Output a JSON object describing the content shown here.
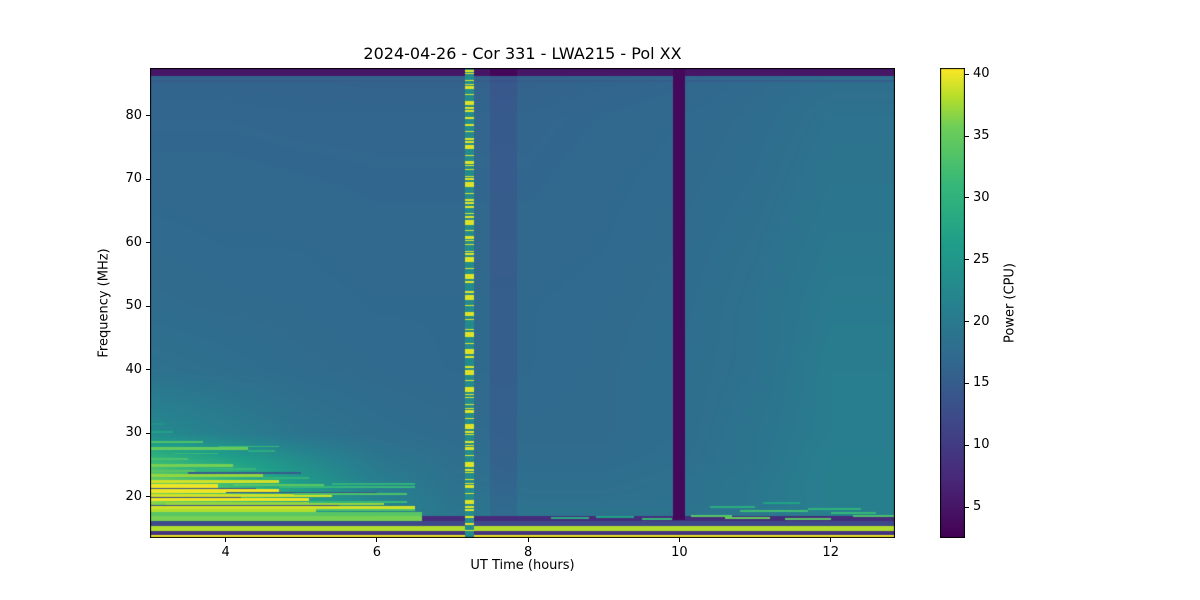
{
  "chart_data": {
    "type": "heatmap",
    "title": "2024-04-26 - Cor 331 - LWA215 - Pol XX",
    "xlabel": "UT Time (hours)",
    "ylabel": "Frequency (MHz)",
    "colorbar_label": "Power (CPU)",
    "x_range": [
      3.0,
      12.85
    ],
    "y_range": [
      13.5,
      87.5
    ],
    "value_range": [
      2.5,
      40.5
    ],
    "xticks": [
      4,
      6,
      8,
      10,
      12
    ],
    "yticks": [
      20,
      30,
      40,
      50,
      60,
      70,
      80
    ],
    "colorbar_ticks": [
      5,
      10,
      15,
      20,
      25,
      30,
      35,
      40
    ],
    "colormap": "viridis",
    "colormap_stops": [
      [
        0,
        "#440154"
      ],
      [
        0.125,
        "#482878"
      ],
      [
        0.25,
        "#3e4989"
      ],
      [
        0.375,
        "#31688e"
      ],
      [
        0.5,
        "#26828e"
      ],
      [
        0.625,
        "#1f9e89"
      ],
      [
        0.75,
        "#35b779"
      ],
      [
        0.875,
        "#6ece58"
      ],
      [
        0.9375,
        "#b5de2b"
      ],
      [
        1,
        "#fde725"
      ]
    ],
    "base_grid": {
      "times": [
        3,
        4,
        5,
        6,
        7,
        8,
        9,
        10,
        11,
        12,
        12.85
      ],
      "freqs": [
        13.5,
        15,
        17,
        19,
        22,
        26,
        30,
        40,
        50,
        60,
        70,
        80,
        85,
        87.5
      ],
      "values": [
        [
          24,
          23,
          22,
          21,
          20,
          20,
          20,
          20,
          20.5,
          21,
          21
        ],
        [
          26,
          24,
          23,
          21,
          20,
          19.5,
          19.5,
          19.5,
          20,
          21,
          21
        ],
        [
          30,
          27,
          24,
          21,
          19.5,
          19,
          19,
          19,
          19.5,
          21,
          21
        ],
        [
          37,
          33,
          27,
          22,
          19,
          18.5,
          18.5,
          18.5,
          19.5,
          21,
          21
        ],
        [
          36,
          32,
          26,
          21,
          18.5,
          18,
          18,
          18.5,
          19.5,
          21,
          21
        ],
        [
          31,
          27,
          23,
          19.5,
          18,
          17.5,
          17.5,
          18,
          19,
          21,
          21
        ],
        [
          23,
          21,
          19,
          18,
          17.5,
          17.3,
          17.3,
          17.8,
          19,
          20.5,
          20.5
        ],
        [
          18.5,
          18,
          17.5,
          17.2,
          17,
          17,
          17.3,
          17.8,
          18.5,
          20.5,
          20.5
        ],
        [
          17.5,
          17.3,
          17.2,
          17,
          17,
          17,
          17.2,
          17.6,
          18.5,
          20,
          20
        ],
        [
          17.2,
          17,
          17,
          16.8,
          16.8,
          16.8,
          17,
          17.4,
          18.2,
          19.5,
          19.5
        ],
        [
          16.8,
          16.8,
          16.7,
          16.6,
          16.6,
          16.6,
          16.9,
          17.2,
          17.8,
          19,
          19
        ],
        [
          16.5,
          16.5,
          16.4,
          16.4,
          16.4,
          16.4,
          16.7,
          17,
          17.5,
          18.5,
          18.5
        ],
        [
          16.2,
          16.2,
          16.1,
          16,
          16,
          16,
          16.3,
          16.6,
          17.2,
          18,
          18
        ],
        [
          15.8,
          15.8,
          15.8,
          15.8,
          15.8,
          15.8,
          16,
          16.2,
          16.8,
          17.5,
          17.5
        ]
      ]
    },
    "features": {
      "top_dark_band": {
        "f0": 86.2,
        "f1": 87.5,
        "value": 5
      },
      "bright_stripe": {
        "t0": 7.16,
        "t1": 7.28,
        "value_low": 23,
        "value_high": 39.5
      },
      "dim_band": {
        "t0": 7.5,
        "t1": 7.85,
        "delta": -1.8,
        "f_min": 17
      },
      "dark_stripe": {
        "t0": 9.92,
        "t1": 10.07,
        "f0": 16.3,
        "f1": 87.5,
        "value": 3.5
      },
      "bottom_bands": [
        [
          3.0,
          12.85,
          13.5,
          14.05,
          40
        ],
        [
          3.0,
          12.85,
          14.05,
          14.65,
          9
        ],
        [
          3.0,
          12.85,
          14.65,
          15.35,
          38
        ],
        [
          3.0,
          12.85,
          15.35,
          16.15,
          12
        ],
        [
          6.6,
          12.85,
          16.15,
          16.95,
          8
        ],
        [
          3.0,
          6.6,
          16.15,
          16.95,
          36
        ],
        [
          3.0,
          6.6,
          16.95,
          17.6,
          34
        ]
      ],
      "streaks": [
        [
          3.0,
          3.7,
          28.6,
          33,
          0.35
        ],
        [
          3.0,
          4.3,
          27.6,
          35,
          0.4
        ],
        [
          3.3,
          3.9,
          26.8,
          31,
          0.3
        ],
        [
          3.0,
          3.5,
          25.9,
          33,
          0.35
        ],
        [
          3.9,
          4.7,
          27.9,
          31,
          0.3
        ],
        [
          4.3,
          4.65,
          27.2,
          29,
          0.3
        ],
        [
          3.0,
          4.1,
          24.9,
          36,
          0.4
        ],
        [
          3.0,
          3.6,
          24.1,
          34,
          0.35
        ],
        [
          3.7,
          4.4,
          24.4,
          31,
          0.3
        ],
        [
          3.0,
          4.5,
          23.3,
          37,
          0.4
        ],
        [
          4.5,
          5.1,
          23.0,
          30,
          0.3
        ],
        [
          3.0,
          4.7,
          22.4,
          39,
          0.5
        ],
        [
          3.0,
          3.9,
          21.7,
          40,
          0.5
        ],
        [
          4.1,
          5.3,
          21.9,
          34,
          0.35
        ],
        [
          4.7,
          6.5,
          21.5,
          31,
          0.3
        ],
        [
          5.4,
          6.5,
          22.0,
          30,
          0.3
        ],
        [
          3.0,
          4.7,
          20.9,
          40,
          0.6
        ],
        [
          3.0,
          5.4,
          20.2,
          39,
          0.5
        ],
        [
          4.9,
          6.4,
          20.4,
          33,
          0.3
        ],
        [
          3.0,
          5.1,
          19.5,
          40,
          0.5
        ],
        [
          3.2,
          6.1,
          18.9,
          37,
          0.4
        ],
        [
          5.1,
          6.4,
          19.2,
          31,
          0.3
        ],
        [
          3.0,
          6.5,
          18.3,
          39,
          0.4
        ],
        [
          3.0,
          5.2,
          17.8,
          38,
          0.4
        ],
        [
          5.2,
          6.5,
          17.9,
          33,
          0.3
        ],
        [
          3.0,
          4.4,
          21.3,
          14,
          0.25
        ],
        [
          3.0,
          4.2,
          19.9,
          13,
          0.25
        ],
        [
          3.5,
          5.0,
          23.7,
          15,
          0.3
        ],
        [
          3.0,
          5.5,
          18.6,
          13,
          0.25
        ],
        [
          4.0,
          6.0,
          20.7,
          14,
          0.2
        ],
        [
          3.0,
          3.3,
          30.2,
          27,
          0.35
        ],
        [
          3.0,
          3.2,
          31.5,
          24,
          0.3
        ],
        [
          8.3,
          8.8,
          16.6,
          29,
          0.35
        ],
        [
          8.9,
          9.4,
          16.8,
          27,
          0.3
        ],
        [
          9.5,
          9.9,
          16.5,
          31,
          0.3
        ],
        [
          10.15,
          10.7,
          17.0,
          34,
          0.35
        ],
        [
          10.4,
          11.0,
          18.4,
          29,
          0.35
        ],
        [
          10.8,
          11.7,
          17.7,
          32,
          0.35
        ],
        [
          11.1,
          11.6,
          19.0,
          27,
          0.3
        ],
        [
          11.7,
          12.4,
          18.1,
          30,
          0.35
        ],
        [
          12.0,
          12.6,
          17.4,
          31,
          0.3
        ],
        [
          12.3,
          12.85,
          16.9,
          33,
          0.3
        ],
        [
          10.6,
          11.2,
          16.6,
          35,
          0.35
        ],
        [
          11.4,
          12.0,
          16.5,
          34,
          0.3
        ],
        [
          3.0,
          12.85,
          85.5,
          15,
          0.3
        ]
      ]
    }
  }
}
